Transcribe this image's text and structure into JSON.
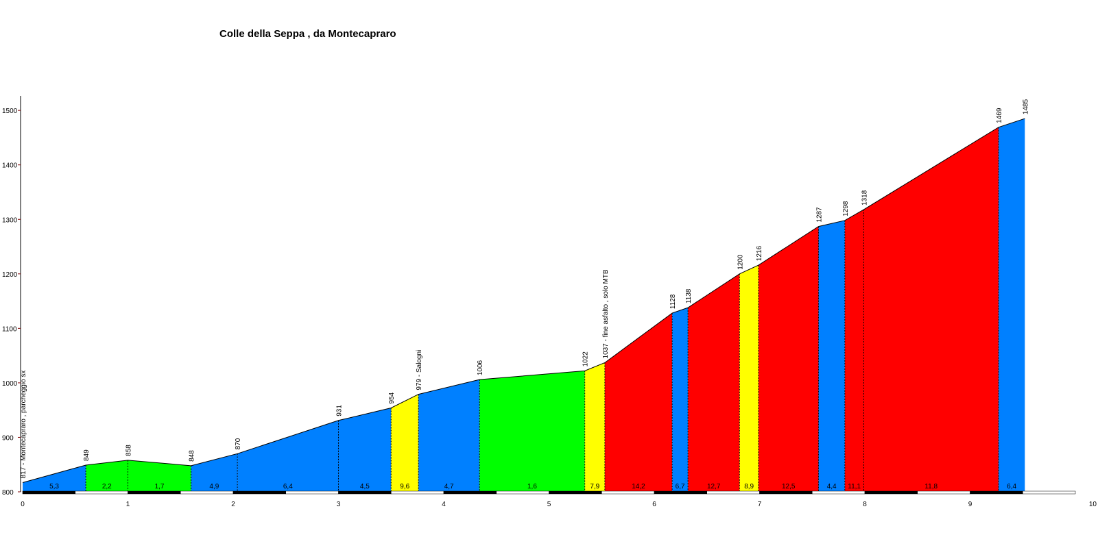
{
  "chart_data": {
    "type": "area",
    "title": "Colle della Seppa , da Montecapraro",
    "xlabel": "",
    "ylabel": "",
    "xlim": [
      0,
      10
    ],
    "ylim": [
      775,
      1500
    ],
    "x_ticks": [
      0,
      1,
      2,
      3,
      4,
      5,
      6,
      7,
      8,
      9,
      10
    ],
    "y_ticks": [
      800,
      900,
      1000,
      1100,
      1200,
      1300,
      1400,
      1500
    ],
    "grid": false,
    "profile": [
      {
        "x": 0.0,
        "elev": 817,
        "label": "817 - Montecapraro , parcheggio sx"
      },
      {
        "x": 0.6,
        "elev": 849,
        "label": "849"
      },
      {
        "x": 1.0,
        "elev": 858,
        "label": "858"
      },
      {
        "x": 1.6,
        "elev": 848,
        "label": "848"
      },
      {
        "x": 2.04,
        "elev": 870,
        "label": "870"
      },
      {
        "x": 3.0,
        "elev": 931,
        "label": "931"
      },
      {
        "x": 3.5,
        "elev": 954,
        "label": "954"
      },
      {
        "x": 3.76,
        "elev": 979,
        "label": "979 - Salogni"
      },
      {
        "x": 4.34,
        "elev": 1006,
        "label": "1006"
      },
      {
        "x": 5.34,
        "elev": 1022,
        "label": "1022"
      },
      {
        "x": 5.53,
        "elev": 1037,
        "label": "1037 - fine asfalto , solo MTB"
      },
      {
        "x": 6.17,
        "elev": 1128,
        "label": "1128"
      },
      {
        "x": 6.32,
        "elev": 1138,
        "label": "1138"
      },
      {
        "x": 6.81,
        "elev": 1200,
        "label": "1200"
      },
      {
        "x": 6.99,
        "elev": 1216,
        "label": "1216"
      },
      {
        "x": 7.56,
        "elev": 1287,
        "label": "1287"
      },
      {
        "x": 7.81,
        "elev": 1298,
        "label": "1298"
      },
      {
        "x": 7.99,
        "elev": 1318,
        "label": "1318"
      },
      {
        "x": 9.27,
        "elev": 1469,
        "label": "1469"
      },
      {
        "x": 9.52,
        "elev": 1485,
        "label": "1485"
      }
    ],
    "segments": [
      {
        "gradient": "5,3",
        "color": "#0080FF"
      },
      {
        "gradient": "2,2",
        "color": "#00FF00"
      },
      {
        "gradient": "1,7",
        "color": "#00FF00"
      },
      {
        "gradient": "4,9",
        "color": "#0080FF"
      },
      {
        "gradient": "6,4",
        "color": "#0080FF"
      },
      {
        "gradient": "4,5",
        "color": "#0080FF"
      },
      {
        "gradient": "9,6",
        "color": "#FFFF00"
      },
      {
        "gradient": "4,7",
        "color": "#0080FF"
      },
      {
        "gradient": "1,6",
        "color": "#00FF00"
      },
      {
        "gradient": "7,9",
        "color": "#FFFF00"
      },
      {
        "gradient": "14,2",
        "color": "#FF0000"
      },
      {
        "gradient": "6,7",
        "color": "#0080FF"
      },
      {
        "gradient": "12,7",
        "color": "#FF0000"
      },
      {
        "gradient": "8,9",
        "color": "#FFFF00"
      },
      {
        "gradient": "12,5",
        "color": "#FF0000"
      },
      {
        "gradient": "4,4",
        "color": "#0080FF"
      },
      {
        "gradient": "11,1",
        "color": "#FF0000"
      },
      {
        "gradient": "11,8",
        "color": "#FF0000"
      },
      {
        "gradient": "6,4",
        "color": "#0080FF"
      }
    ],
    "colors": {
      "axis_tick": "#800000",
      "scale_dark": "#000000",
      "scale_light": "#ffffff"
    }
  }
}
